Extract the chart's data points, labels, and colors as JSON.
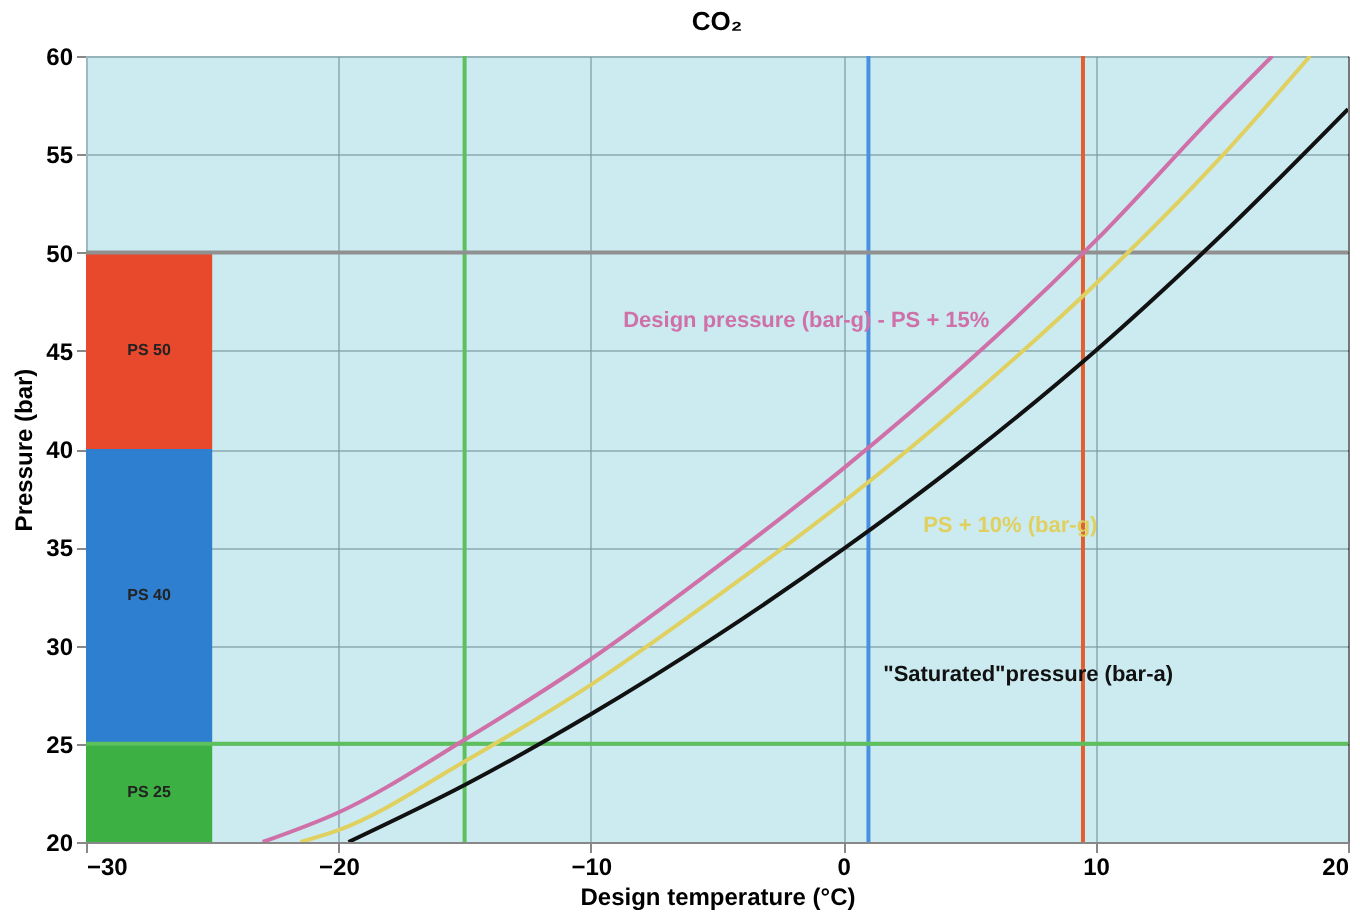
{
  "chart_data": {
    "type": "line",
    "title": "CO₂",
    "xlabel": "Design temperature (°C)",
    "ylabel": "Pressure (bar)",
    "xlim": [
      -30,
      20
    ],
    "ylim": [
      20,
      60
    ],
    "xticks": [
      -30,
      -20,
      -10,
      0,
      10,
      20
    ],
    "yticks": [
      20,
      25,
      30,
      35,
      40,
      45,
      50,
      55,
      60
    ],
    "grid": true,
    "marker": "none",
    "line_style": "solid",
    "series": [
      {
        "name": "Design pressure (bar-g) - PS + 15%",
        "color": "#d070a8",
        "x": [
          -23,
          -20,
          -15,
          -10,
          -5,
          0,
          5,
          10,
          15,
          17
        ],
        "values": [
          20,
          21.5,
          25.2,
          29.3,
          34.0,
          39.0,
          44.5,
          50.6,
          57.4,
          60
        ]
      },
      {
        "name": "PS + 10% (bar-g)",
        "color": "#e0d060",
        "x": [
          -21.5,
          -20,
          -15,
          -10,
          -5,
          0,
          5,
          10,
          15,
          18.5
        ],
        "values": [
          20,
          20.6,
          24.1,
          28.0,
          32.5,
          37.3,
          42.6,
          48.4,
          54.9,
          60
        ]
      },
      {
        "name": "\"Saturated\"pressure (bar-a)",
        "color": "#111111",
        "x": [
          -19.6,
          -15,
          -10,
          -5,
          0,
          5,
          10,
          15,
          20
        ],
        "values": [
          20,
          22.9,
          26.5,
          30.5,
          34.9,
          39.7,
          45.0,
          50.9,
          57.3
        ]
      }
    ],
    "bands": [
      {
        "axis": "y",
        "from": 20,
        "to": 25,
        "label": "PS 25",
        "color": "#3cb043"
      },
      {
        "axis": "y",
        "from": 25,
        "to": 40,
        "label": "PS 40",
        "color": "#2f7fd0"
      },
      {
        "axis": "y",
        "from": 40,
        "to": 50,
        "label": "PS 50",
        "color": "#e8482c"
      }
    ],
    "ref_lines": [
      {
        "axis": "x",
        "value": -15,
        "color": "#5cc05c"
      },
      {
        "axis": "x",
        "value": 1,
        "color": "#4a90e0"
      },
      {
        "axis": "x",
        "value": 9.5,
        "color": "#e06030"
      },
      {
        "axis": "y",
        "value": 50,
        "color": "#909090"
      },
      {
        "axis": "y",
        "value": 25,
        "color": "#5cc05c"
      }
    ]
  }
}
